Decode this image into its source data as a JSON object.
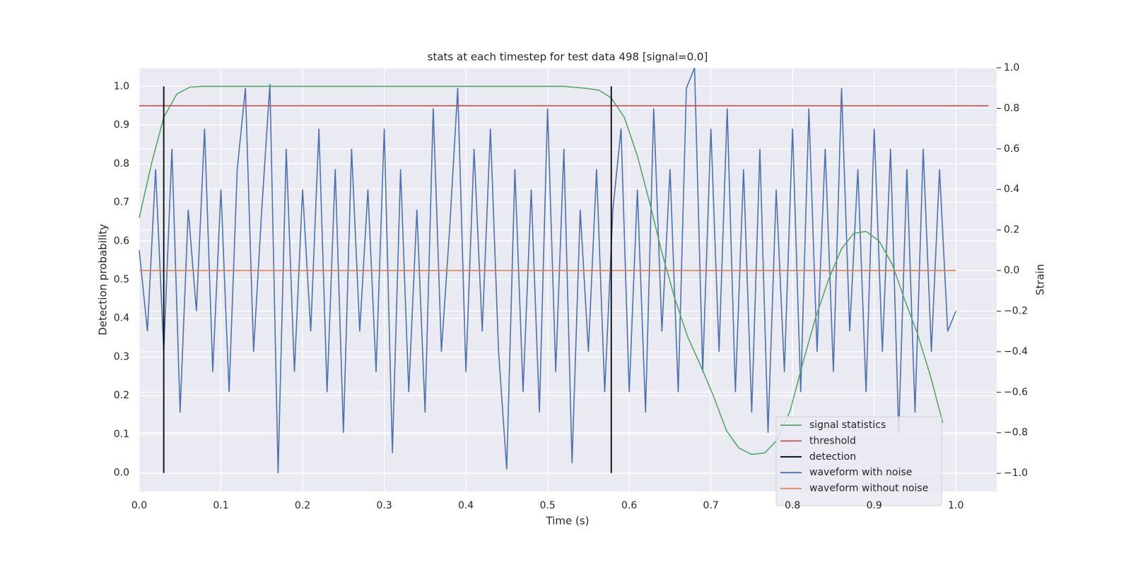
{
  "chart_data": {
    "type": "line",
    "title": "stats at each timestep for test data 498 [signal=0.0]",
    "x_label": "Time (s)",
    "y_label": "Detection probability",
    "y2_label": "Strain",
    "xlim": [
      0,
      1.05
    ],
    "ylim": [
      -0.048,
      1.048
    ],
    "y2lim": [
      -1.09,
      1.0
    ],
    "xticks": [
      {
        "value": 0,
        "label": "0.0"
      },
      0.1,
      0.2,
      0.3,
      0.4,
      0.5,
      0.6,
      0.7,
      0.8,
      0.9,
      {
        "value": 1,
        "label": "1.0"
      }
    ],
    "yticks": [
      {
        "value": 0,
        "label": "0.0"
      },
      0.1,
      0.2,
      0.3,
      0.4,
      0.5,
      0.6,
      0.7,
      0.8,
      0.9,
      {
        "value": 1,
        "label": "1.0"
      }
    ],
    "y2ticks": [
      {
        "value": -1,
        "label": "−1.0"
      },
      {
        "value": -0.8,
        "label": "−0.8"
      },
      {
        "value": -0.6,
        "label": "−0.6"
      },
      {
        "value": -0.4,
        "label": "−0.4"
      },
      {
        "value": -0.2,
        "label": "−0.2"
      },
      {
        "value": 0,
        "label": "0.0"
      },
      0.2,
      0.4,
      0.6,
      0.8,
      {
        "value": 1,
        "label": "1.0"
      }
    ],
    "grid": true,
    "legend": "lower right",
    "series": [
      {
        "name": "signal statistics",
        "color": "#55a868",
        "kind": "line",
        "x": [
          0,
          0.015,
          0.03,
          0.046,
          0.062,
          0.078,
          0.1,
          0.2,
          0.3,
          0.4,
          0.52,
          0.547,
          0.563,
          0.578,
          0.594,
          0.61,
          0.625,
          0.64,
          0.656,
          0.672,
          0.687,
          0.703,
          0.719,
          0.734,
          0.75,
          0.766,
          0.781,
          0.797,
          0.812,
          0.828,
          0.844,
          0.86,
          0.875,
          0.89,
          0.906,
          0.922,
          0.937,
          0.953,
          0.969,
          0.984
        ],
        "values": [
          0.66,
          0.8,
          0.92,
          0.98,
          0.998,
          1.0,
          1.0,
          1.0,
          1.0,
          1.0,
          1.0,
          0.995,
          0.99,
          0.97,
          0.92,
          0.82,
          0.7,
          0.57,
          0.45,
          0.35,
          0.28,
          0.2,
          0.11,
          0.065,
          0.048,
          0.052,
          0.085,
          0.16,
          0.28,
          0.4,
          0.5,
          0.58,
          0.62,
          0.625,
          0.6,
          0.54,
          0.45,
          0.36,
          0.25,
          0.13
        ]
      },
      {
        "name": "threshold",
        "color": "#c44e52",
        "kind": "line",
        "x": [
          0,
          1.04
        ],
        "values": [
          0.95,
          0.95
        ]
      },
      {
        "name": "detection",
        "color": "#000000",
        "kind": "vlines",
        "x": [
          0.03,
          0.578
        ],
        "values": [
          1,
          1
        ]
      },
      {
        "name": "waveform with noise",
        "color": "#4c72b0",
        "kind": "line",
        "axis": "y2",
        "x": [
          0,
          0.01,
          0.02,
          0.03,
          0.04,
          0.05,
          0.06,
          0.07,
          0.08,
          0.09,
          0.1,
          0.11,
          0.12,
          0.13,
          0.14,
          0.15,
          0.16,
          0.17,
          0.18,
          0.19,
          0.2,
          0.21,
          0.22,
          0.23,
          0.24,
          0.25,
          0.26,
          0.27,
          0.28,
          0.29,
          0.3,
          0.31,
          0.32,
          0.33,
          0.34,
          0.35,
          0.36,
          0.37,
          0.38,
          0.39,
          0.4,
          0.41,
          0.42,
          0.43,
          0.44,
          0.45,
          0.46,
          0.47,
          0.48,
          0.49,
          0.5,
          0.51,
          0.52,
          0.53,
          0.54,
          0.55,
          0.56,
          0.57,
          0.58,
          0.59,
          0.6,
          0.61,
          0.62,
          0.63,
          0.64,
          0.65,
          0.66,
          0.67,
          0.68,
          0.69,
          0.7,
          0.71,
          0.72,
          0.73,
          0.74,
          0.75,
          0.76,
          0.77,
          0.78,
          0.79,
          0.8,
          0.81,
          0.82,
          0.83,
          0.84,
          0.85,
          0.86,
          0.87,
          0.88,
          0.89,
          0.9,
          0.91,
          0.92,
          0.93,
          0.94,
          0.95,
          0.96,
          0.97,
          0.98,
          0.99,
          1.0
        ],
        "values": [
          0.1,
          -0.3,
          0.5,
          -0.4,
          0.6,
          -0.7,
          0.3,
          -0.2,
          0.7,
          -0.5,
          0.4,
          -0.6,
          0.5,
          0.9,
          -0.4,
          0.3,
          0.92,
          -1.0,
          0.6,
          -0.5,
          0.4,
          -0.3,
          0.7,
          -0.6,
          0.5,
          -0.8,
          0.6,
          -0.3,
          0.4,
          -0.5,
          0.7,
          -0.9,
          0.5,
          -0.6,
          0.3,
          -0.7,
          0.8,
          -0.4,
          0.2,
          0.9,
          -0.5,
          0.6,
          -0.3,
          0.7,
          -0.4,
          -0.98,
          0.5,
          -0.6,
          0.4,
          -0.7,
          0.8,
          -0.5,
          0.6,
          -0.95,
          0.3,
          -0.4,
          0.5,
          -0.6,
          0.3,
          0.7,
          -0.6,
          0.4,
          -0.7,
          0.8,
          -0.3,
          0.5,
          -0.6,
          0.9,
          1.0,
          -0.5,
          0.7,
          -0.4,
          0.8,
          -0.6,
          0.5,
          -0.7,
          0.6,
          -0.8,
          0.4,
          -0.5,
          0.7,
          -0.6,
          0.8,
          -0.4,
          0.6,
          -0.5,
          0.9,
          -0.3,
          0.5,
          -0.6,
          0.7,
          -0.4,
          0.6,
          -0.8,
          0.5,
          -0.7,
          0.6,
          -0.4,
          0.5,
          -0.3,
          -0.2
        ]
      },
      {
        "name": "waveform without noise",
        "color": "#dd8452",
        "kind": "line",
        "axis": "y2",
        "x": [
          0,
          1
        ],
        "values": [
          0,
          0
        ]
      }
    ]
  }
}
